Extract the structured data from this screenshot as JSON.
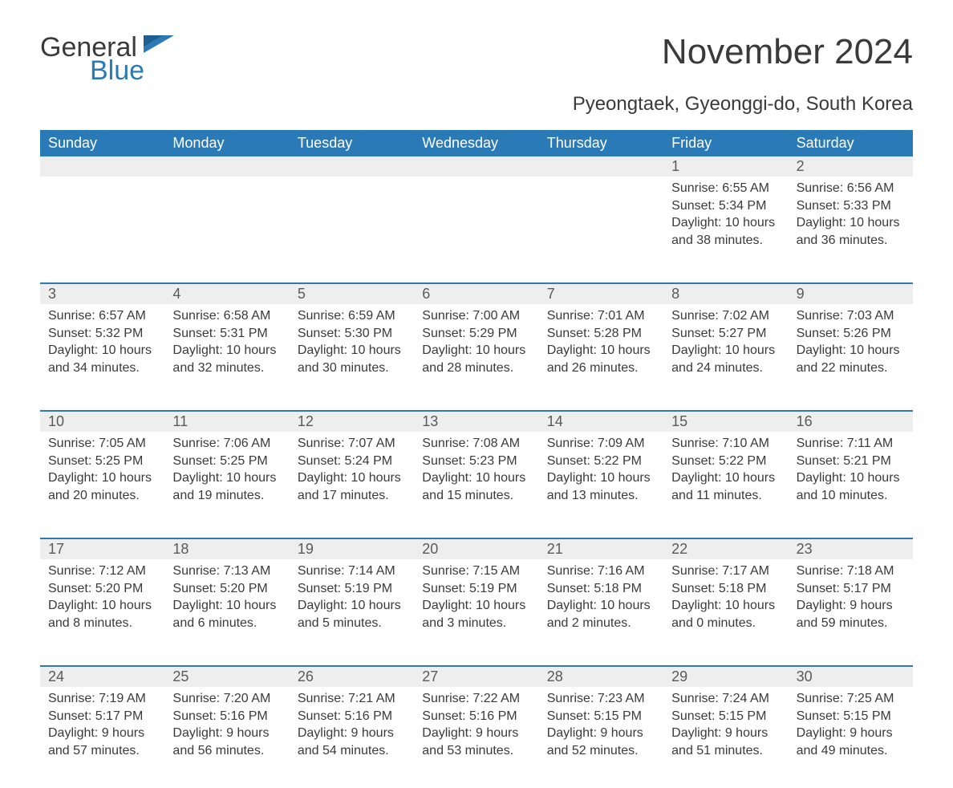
{
  "logo": {
    "general": "General",
    "blue": "Blue"
  },
  "title": "November 2024",
  "subtitle": "Pyeongtaek, Gyeonggi-do, South Korea",
  "colors": {
    "header_bg": "#2a7ab8",
    "header_text": "#ffffff",
    "daynum_bg": "#eeeeee",
    "week_border": "#2a7ab8",
    "text": "#3a3a3a",
    "logo_blue": "#2a7ab8"
  },
  "weekdays": [
    "Sunday",
    "Monday",
    "Tuesday",
    "Wednesday",
    "Thursday",
    "Friday",
    "Saturday"
  ],
  "weeks": [
    [
      {
        "day": "",
        "sunrise": "",
        "sunset": "",
        "daylight": ""
      },
      {
        "day": "",
        "sunrise": "",
        "sunset": "",
        "daylight": ""
      },
      {
        "day": "",
        "sunrise": "",
        "sunset": "",
        "daylight": ""
      },
      {
        "day": "",
        "sunrise": "",
        "sunset": "",
        "daylight": ""
      },
      {
        "day": "",
        "sunrise": "",
        "sunset": "",
        "daylight": ""
      },
      {
        "day": "1",
        "sunrise": "Sunrise: 6:55 AM",
        "sunset": "Sunset: 5:34 PM",
        "daylight": "Daylight: 10 hours and 38 minutes."
      },
      {
        "day": "2",
        "sunrise": "Sunrise: 6:56 AM",
        "sunset": "Sunset: 5:33 PM",
        "daylight": "Daylight: 10 hours and 36 minutes."
      }
    ],
    [
      {
        "day": "3",
        "sunrise": "Sunrise: 6:57 AM",
        "sunset": "Sunset: 5:32 PM",
        "daylight": "Daylight: 10 hours and 34 minutes."
      },
      {
        "day": "4",
        "sunrise": "Sunrise: 6:58 AM",
        "sunset": "Sunset: 5:31 PM",
        "daylight": "Daylight: 10 hours and 32 minutes."
      },
      {
        "day": "5",
        "sunrise": "Sunrise: 6:59 AM",
        "sunset": "Sunset: 5:30 PM",
        "daylight": "Daylight: 10 hours and 30 minutes."
      },
      {
        "day": "6",
        "sunrise": "Sunrise: 7:00 AM",
        "sunset": "Sunset: 5:29 PM",
        "daylight": "Daylight: 10 hours and 28 minutes."
      },
      {
        "day": "7",
        "sunrise": "Sunrise: 7:01 AM",
        "sunset": "Sunset: 5:28 PM",
        "daylight": "Daylight: 10 hours and 26 minutes."
      },
      {
        "day": "8",
        "sunrise": "Sunrise: 7:02 AM",
        "sunset": "Sunset: 5:27 PM",
        "daylight": "Daylight: 10 hours and 24 minutes."
      },
      {
        "day": "9",
        "sunrise": "Sunrise: 7:03 AM",
        "sunset": "Sunset: 5:26 PM",
        "daylight": "Daylight: 10 hours and 22 minutes."
      }
    ],
    [
      {
        "day": "10",
        "sunrise": "Sunrise: 7:05 AM",
        "sunset": "Sunset: 5:25 PM",
        "daylight": "Daylight: 10 hours and 20 minutes."
      },
      {
        "day": "11",
        "sunrise": "Sunrise: 7:06 AM",
        "sunset": "Sunset: 5:25 PM",
        "daylight": "Daylight: 10 hours and 19 minutes."
      },
      {
        "day": "12",
        "sunrise": "Sunrise: 7:07 AM",
        "sunset": "Sunset: 5:24 PM",
        "daylight": "Daylight: 10 hours and 17 minutes."
      },
      {
        "day": "13",
        "sunrise": "Sunrise: 7:08 AM",
        "sunset": "Sunset: 5:23 PM",
        "daylight": "Daylight: 10 hours and 15 minutes."
      },
      {
        "day": "14",
        "sunrise": "Sunrise: 7:09 AM",
        "sunset": "Sunset: 5:22 PM",
        "daylight": "Daylight: 10 hours and 13 minutes."
      },
      {
        "day": "15",
        "sunrise": "Sunrise: 7:10 AM",
        "sunset": "Sunset: 5:22 PM",
        "daylight": "Daylight: 10 hours and 11 minutes."
      },
      {
        "day": "16",
        "sunrise": "Sunrise: 7:11 AM",
        "sunset": "Sunset: 5:21 PM",
        "daylight": "Daylight: 10 hours and 10 minutes."
      }
    ],
    [
      {
        "day": "17",
        "sunrise": "Sunrise: 7:12 AM",
        "sunset": "Sunset: 5:20 PM",
        "daylight": "Daylight: 10 hours and 8 minutes."
      },
      {
        "day": "18",
        "sunrise": "Sunrise: 7:13 AM",
        "sunset": "Sunset: 5:20 PM",
        "daylight": "Daylight: 10 hours and 6 minutes."
      },
      {
        "day": "19",
        "sunrise": "Sunrise: 7:14 AM",
        "sunset": "Sunset: 5:19 PM",
        "daylight": "Daylight: 10 hours and 5 minutes."
      },
      {
        "day": "20",
        "sunrise": "Sunrise: 7:15 AM",
        "sunset": "Sunset: 5:19 PM",
        "daylight": "Daylight: 10 hours and 3 minutes."
      },
      {
        "day": "21",
        "sunrise": "Sunrise: 7:16 AM",
        "sunset": "Sunset: 5:18 PM",
        "daylight": "Daylight: 10 hours and 2 minutes."
      },
      {
        "day": "22",
        "sunrise": "Sunrise: 7:17 AM",
        "sunset": "Sunset: 5:18 PM",
        "daylight": "Daylight: 10 hours and 0 minutes."
      },
      {
        "day": "23",
        "sunrise": "Sunrise: 7:18 AM",
        "sunset": "Sunset: 5:17 PM",
        "daylight": "Daylight: 9 hours and 59 minutes."
      }
    ],
    [
      {
        "day": "24",
        "sunrise": "Sunrise: 7:19 AM",
        "sunset": "Sunset: 5:17 PM",
        "daylight": "Daylight: 9 hours and 57 minutes."
      },
      {
        "day": "25",
        "sunrise": "Sunrise: 7:20 AM",
        "sunset": "Sunset: 5:16 PM",
        "daylight": "Daylight: 9 hours and 56 minutes."
      },
      {
        "day": "26",
        "sunrise": "Sunrise: 7:21 AM",
        "sunset": "Sunset: 5:16 PM",
        "daylight": "Daylight: 9 hours and 54 minutes."
      },
      {
        "day": "27",
        "sunrise": "Sunrise: 7:22 AM",
        "sunset": "Sunset: 5:16 PM",
        "daylight": "Daylight: 9 hours and 53 minutes."
      },
      {
        "day": "28",
        "sunrise": "Sunrise: 7:23 AM",
        "sunset": "Sunset: 5:15 PM",
        "daylight": "Daylight: 9 hours and 52 minutes."
      },
      {
        "day": "29",
        "sunrise": "Sunrise: 7:24 AM",
        "sunset": "Sunset: 5:15 PM",
        "daylight": "Daylight: 9 hours and 51 minutes."
      },
      {
        "day": "30",
        "sunrise": "Sunrise: 7:25 AM",
        "sunset": "Sunset: 5:15 PM",
        "daylight": "Daylight: 9 hours and 49 minutes."
      }
    ]
  ]
}
